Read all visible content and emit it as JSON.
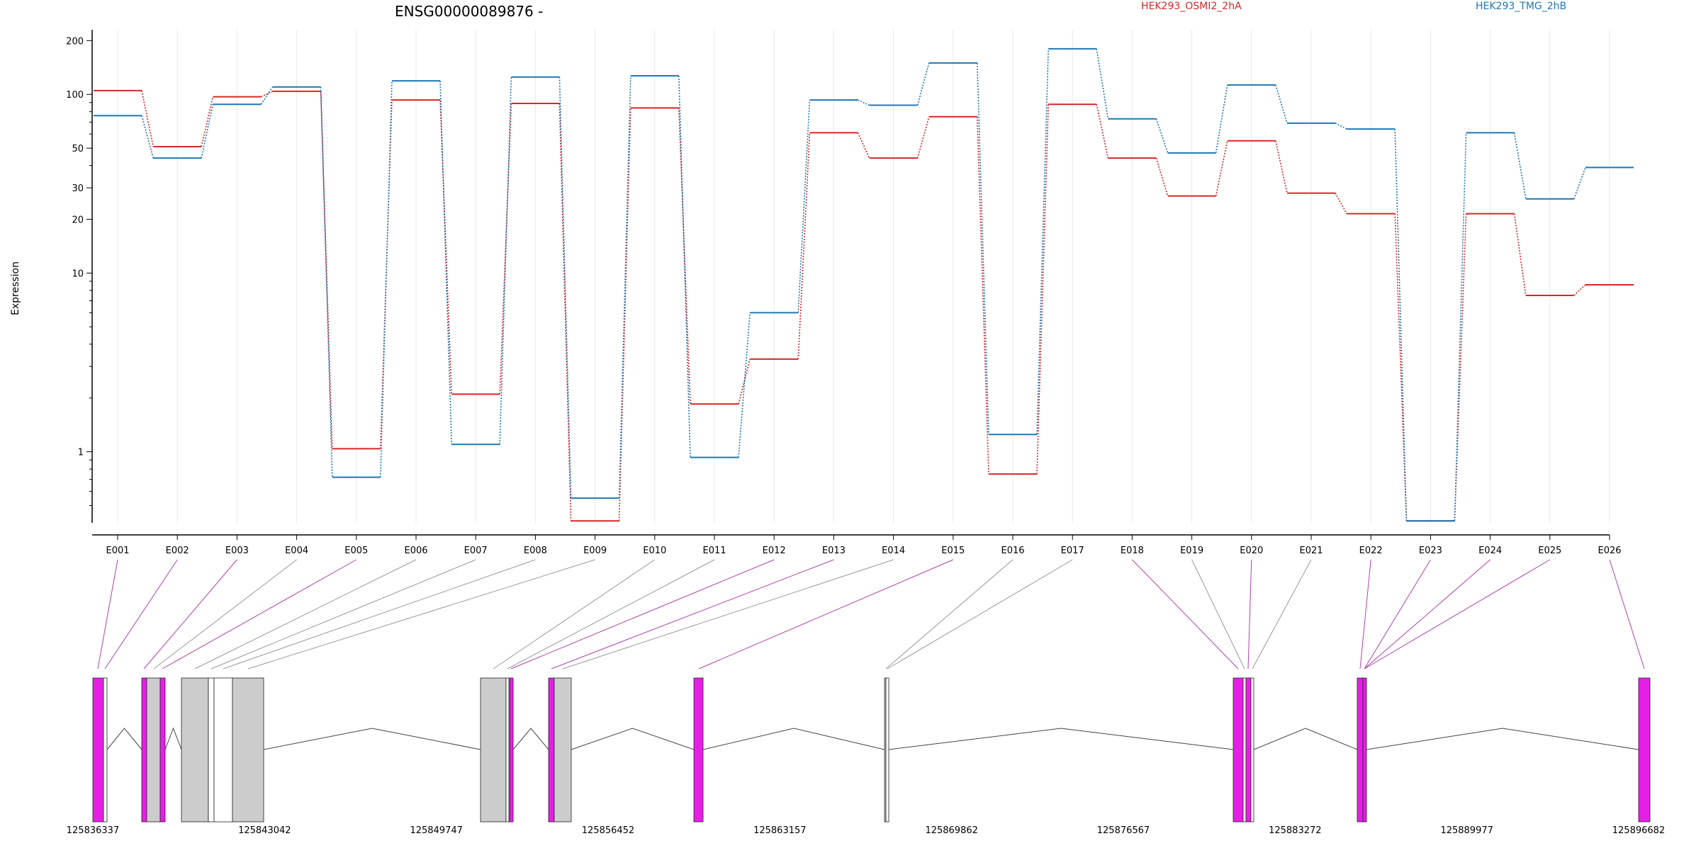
{
  "colors": {
    "osmi": "#d62728",
    "tmg": "#1f77b4",
    "magenta": "#e61fe6",
    "gray": "#cccccc",
    "grid": "#e8e8e8",
    "link_magenta": "#b040b0",
    "link_gray": "#999999"
  },
  "chart_data": {
    "type": "line",
    "title": "ENSG00000089876 -",
    "ylabel": "Expression",
    "yscale": "log",
    "ylim": [
      0.4,
      230
    ],
    "yticks": [
      1,
      10,
      20,
      30,
      50,
      100,
      200
    ],
    "grid": true,
    "legend_placement": "top",
    "categories": [
      "E001",
      "E002",
      "E003",
      "E004",
      "E005",
      "E006",
      "E007",
      "E008",
      "E009",
      "E010",
      "E011",
      "E012",
      "E013",
      "E014",
      "E015",
      "E016",
      "E017",
      "E018",
      "E019",
      "E020",
      "E021",
      "E022",
      "E023",
      "E024",
      "E025",
      "E026"
    ],
    "series": [
      {
        "name": "HEK293_OSMI2_2hA",
        "values": [
          105,
          51,
          97,
          104,
          1.04,
          93,
          2.1,
          89,
          0.41,
          84,
          1.85,
          3.3,
          61,
          44,
          75,
          0.75,
          88,
          44,
          27,
          55,
          28,
          21.5,
          0.41,
          21.5,
          7.5,
          8.6
        ]
      },
      {
        "name": "HEK293_TMG_2hB",
        "values": [
          76,
          44,
          88,
          110,
          0.72,
          119,
          1.1,
          125,
          0.55,
          127,
          0.93,
          6.0,
          93,
          87,
          150,
          1.25,
          180,
          73,
          47,
          113,
          69,
          64,
          0.41,
          61,
          26,
          39
        ]
      }
    ],
    "gene_coordinates": [
      "125836337",
      "125843042",
      "125849747",
      "125856452",
      "125863157",
      "125869862",
      "125876567",
      "125883272",
      "125889977",
      "125896682"
    ]
  }
}
